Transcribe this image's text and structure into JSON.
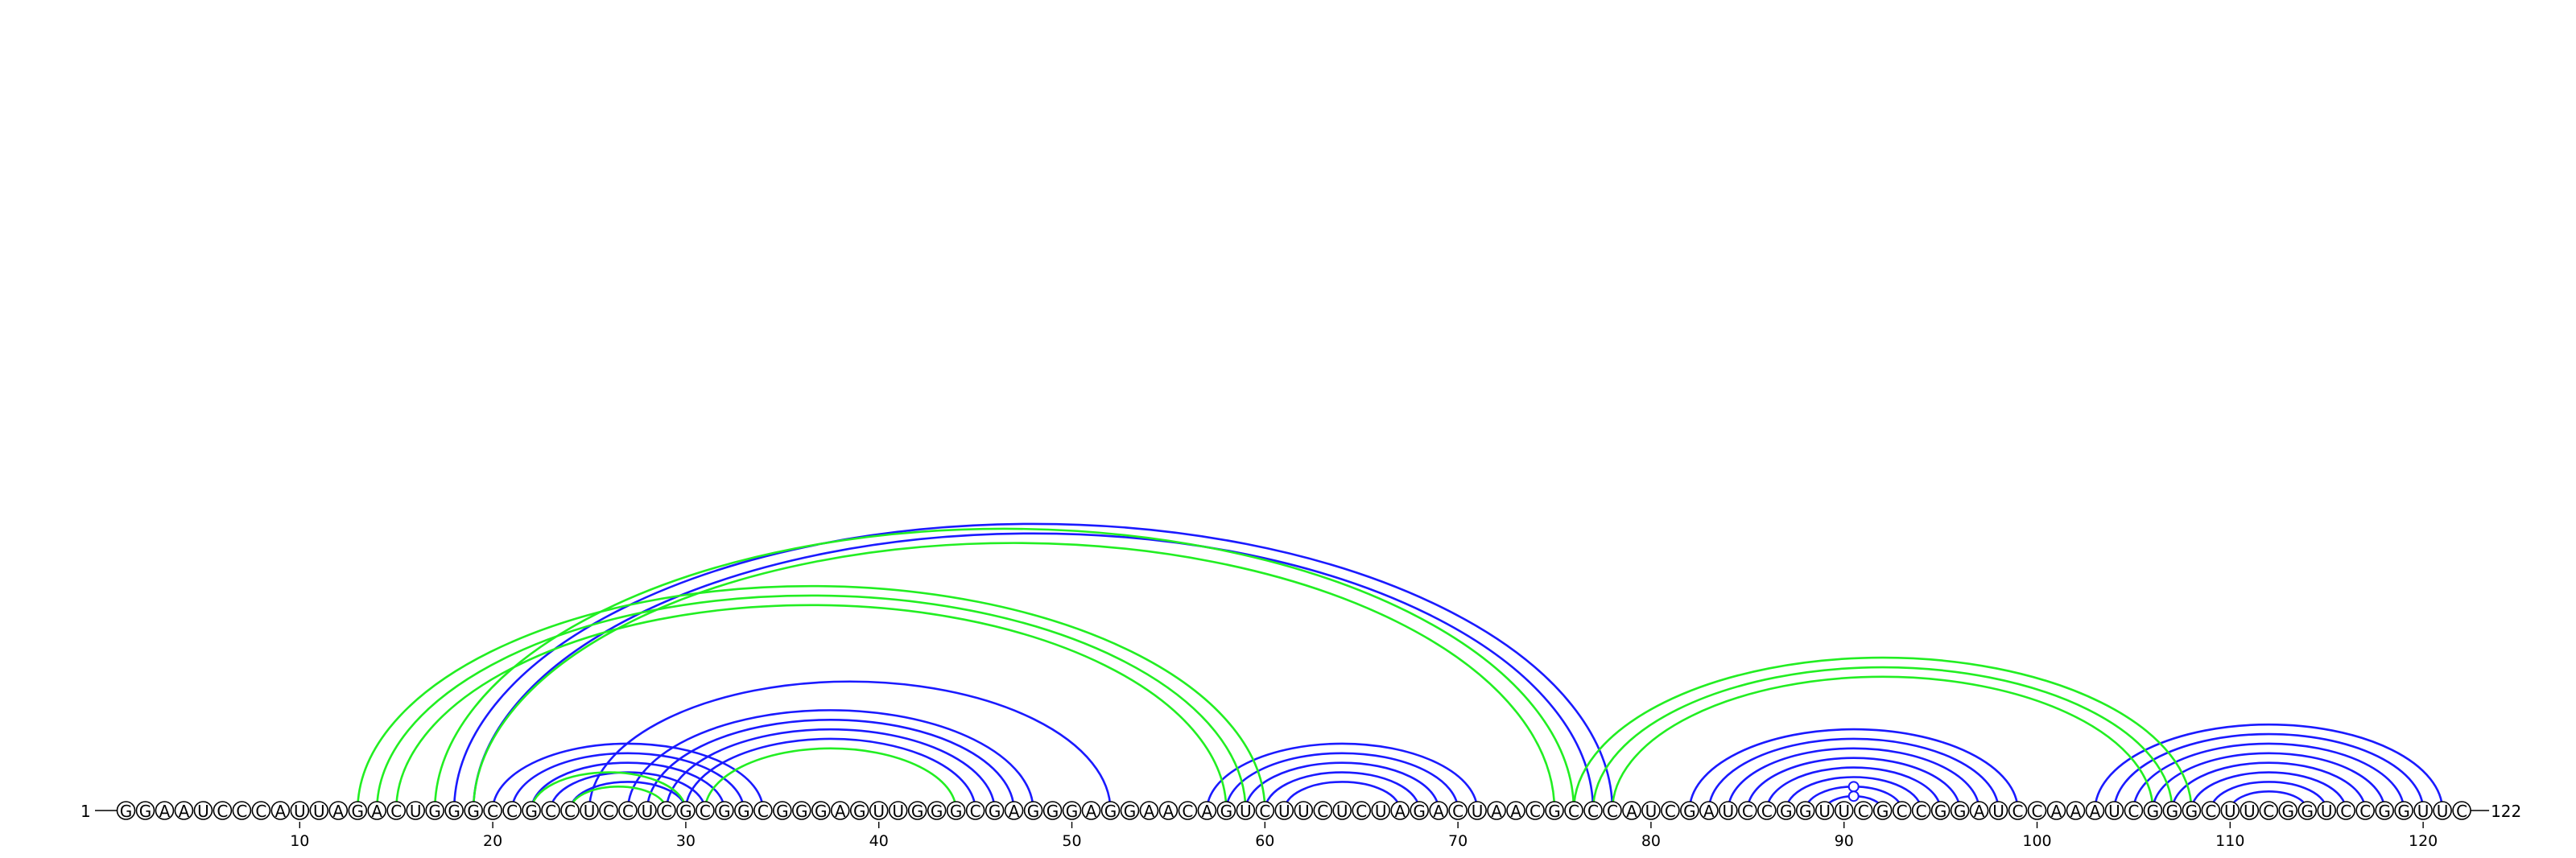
{
  "sequence": "GGAAUCCCAUUAGACUGGGCCGCCUCCUCGCGGCGGGAGUUGGGCGAGGGAGGAACAGUCUUCUCUAGACUAACGCCCAUCGAUCCGGUUCGCCGGAUCCAAAUCGGGCUUCGGUCCGGUUC",
  "start_label": "1",
  "end_label": "122",
  "tick_labels": [
    "10",
    "20",
    "30",
    "40",
    "50",
    "60",
    "70",
    "80",
    "90",
    "100",
    "110",
    "120"
  ],
  "tick_positions": [
    10,
    20,
    30,
    40,
    50,
    60,
    70,
    80,
    90,
    100,
    110,
    120
  ],
  "colors": {
    "blue": "#1a1aff",
    "green": "#22ee22",
    "outline": "#000000"
  },
  "arc_sets": [
    {
      "color": "blue",
      "pairs": [
        [
          18,
          78
        ],
        [
          19,
          77
        ],
        [
          20,
          34
        ],
        [
          21,
          33
        ],
        [
          22,
          32
        ],
        [
          23,
          31
        ],
        [
          24,
          30
        ],
        [
          25,
          52
        ],
        [
          27,
          48
        ],
        [
          28,
          47
        ],
        [
          29,
          46
        ],
        [
          30,
          45
        ],
        [
          57,
          71
        ],
        [
          58,
          70
        ],
        [
          59,
          69
        ],
        [
          60,
          68
        ],
        [
          61,
          67
        ],
        [
          82,
          99
        ],
        [
          83,
          98
        ],
        [
          84,
          97
        ],
        [
          85,
          96
        ],
        [
          86,
          95
        ],
        [
          87,
          94
        ],
        [
          88,
          93
        ],
        [
          89,
          92
        ],
        [
          103,
          121
        ],
        [
          104,
          120
        ],
        [
          105,
          119
        ],
        [
          106,
          118
        ],
        [
          107,
          117
        ],
        [
          108,
          116
        ],
        [
          109,
          115
        ],
        [
          110,
          114
        ]
      ]
    },
    {
      "color": "green",
      "pairs": [
        [
          13,
          60
        ],
        [
          14,
          59
        ],
        [
          15,
          58
        ],
        [
          17,
          76
        ],
        [
          19,
          75
        ],
        [
          22,
          30
        ],
        [
          24,
          29
        ],
        [
          31,
          44
        ],
        [
          76,
          108
        ],
        [
          77,
          107
        ],
        [
          78,
          106
        ]
      ]
    }
  ],
  "markers": [
    {
      "pos": 90.5,
      "color": "blue"
    },
    {
      "pos": 111.5,
      "color": "blue"
    }
  ]
}
